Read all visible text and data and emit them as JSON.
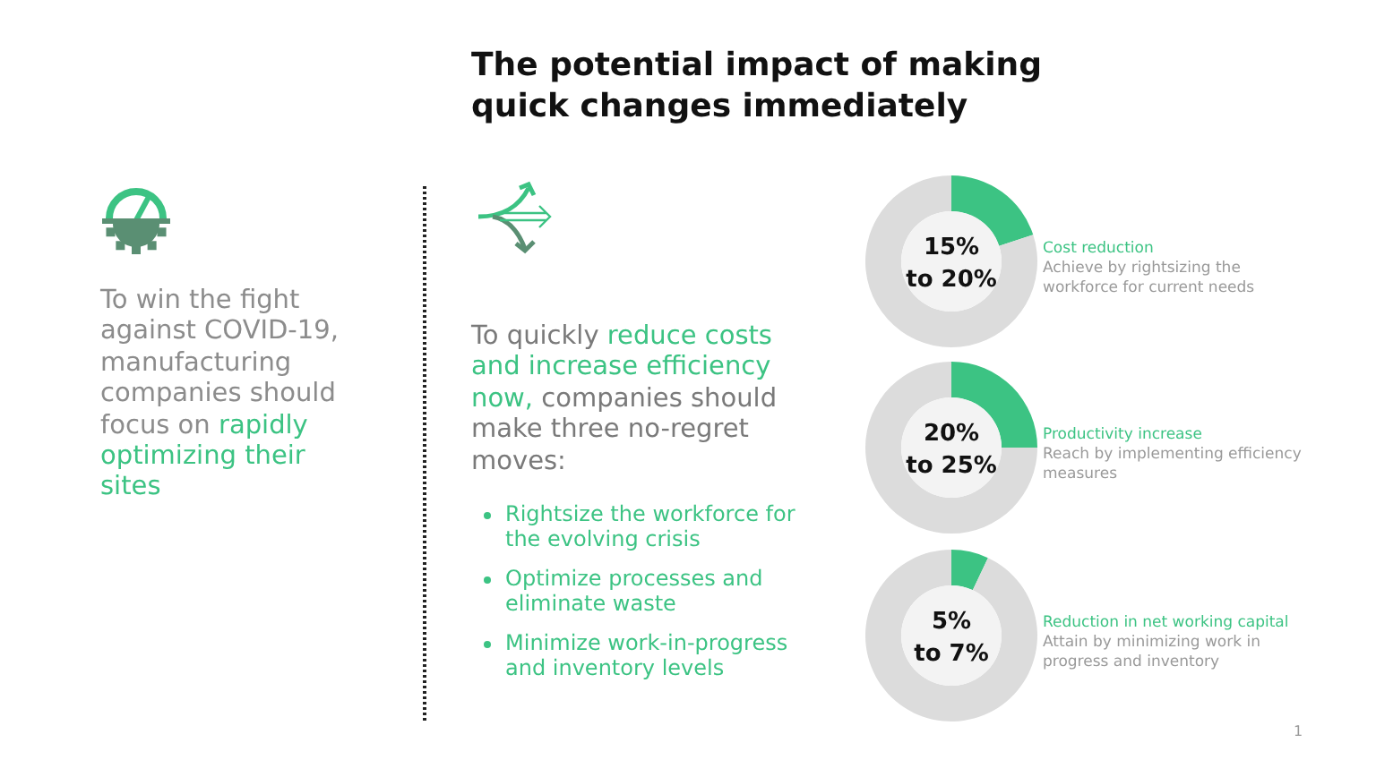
{
  "chart_data": [
    {
      "type": "other",
      "title": "The potential impact of making quick changes immediately",
      "annotations": [
        "1"
      ]
    },
    {
      "type": "other",
      "annotations": [
        "To win the fight against COVID-19, manufacturing companies should focus on ",
        "rapidly optimizing their sites"
      ],
      "colors": [
        "#8c8c8c",
        "#3cc383"
      ]
    },
    {
      "type": "other",
      "annotations": [
        "To quickly ",
        "reduce costs and increase efficiency now,",
        " companies should make three no-regret moves:"
      ],
      "colors": [
        "#7a7a7a",
        "#3cc383",
        "#7a7a7a"
      ]
    },
    {
      "type": "other",
      "annotations": [
        "Rightsize the workforce for the evolving crisis",
        "Optimize processes and eliminate waste",
        "Minimize work-in-progress and inventory levels"
      ],
      "colors": [
        "#3cc383",
        "#3cc383",
        "#3cc383"
      ]
    },
    {
      "type": "donut",
      "title": "Cost reduction",
      "subtitle": "Achieve by rightsizing the workforce for current needs",
      "categories": [
        null,
        null
      ],
      "values": [
        20,
        80
      ],
      "colors": [
        "#3cc383",
        "#dcdcdc"
      ],
      "annotations": [
        "15% to 20%"
      ]
    },
    {
      "type": "donut",
      "title": "Productivity increase",
      "subtitle": "Reach by implementing efficiency measures",
      "categories": [
        null,
        null
      ],
      "values": [
        25,
        75
      ],
      "colors": [
        "#3cc383",
        "#dcdcdc"
      ],
      "annotations": [
        "20% to 25%"
      ]
    },
    {
      "type": "donut",
      "title": "Reduction in net working capital",
      "subtitle": "Attain by minimizing work in progress and inventory",
      "categories": [
        null,
        null
      ],
      "values": [
        7,
        93
      ],
      "colors": [
        "#3cc383",
        "#dcdcdc"
      ],
      "annotations": [
        "5% to 7%"
      ]
    }
  ]
}
